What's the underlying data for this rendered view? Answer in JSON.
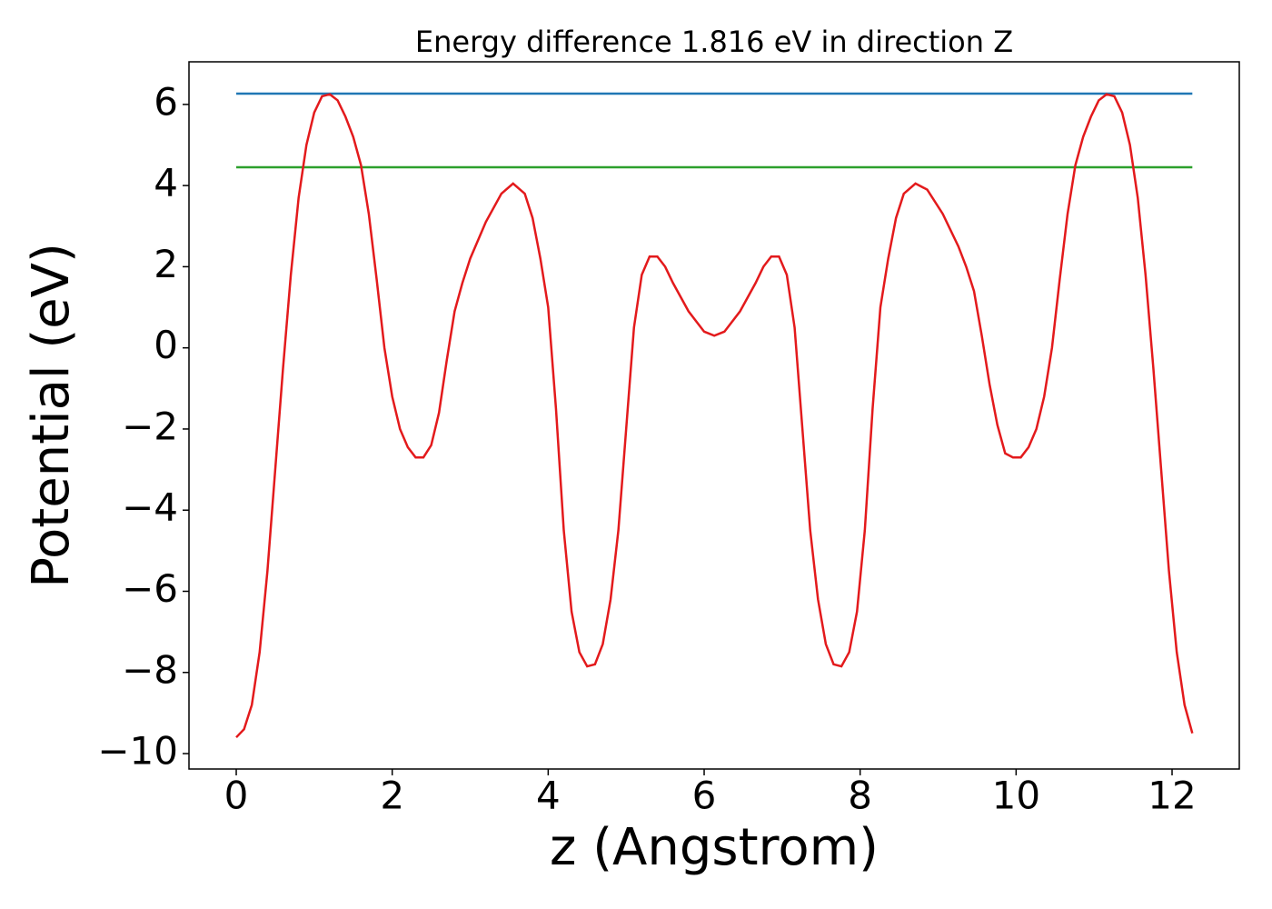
{
  "chart_data": {
    "type": "line",
    "title": "Energy difference 1.816 eV in direction Z",
    "x_label": "z (Angstrom)",
    "y_label": "Potential (eV)",
    "xlim": [
      -0.606,
      12.862
    ],
    "ylim": [
      -10.38,
      7.05
    ],
    "xticks": [
      0,
      2,
      4,
      6,
      8,
      10,
      12
    ],
    "yticks": [
      {
        "value": -10,
        "label": "−10"
      },
      {
        "value": -8,
        "label": "−8"
      },
      {
        "value": -6,
        "label": "−6"
      },
      {
        "value": -4,
        "label": "−4"
      },
      {
        "value": -2,
        "label": "−2"
      },
      0,
      2,
      4,
      6
    ],
    "series": [
      {
        "color": "#1f77b4",
        "x": [
          0,
          12.26
        ],
        "values": [
          6.266,
          6.266
        ]
      },
      {
        "color": "#2ca02c",
        "x": [
          0,
          12.26
        ],
        "values": [
          4.45,
          4.45
        ]
      },
      {
        "color": "#e31a1c",
        "x": [
          0,
          0.1,
          0.2,
          0.3,
          0.4,
          0.5,
          0.6,
          0.7,
          0.8,
          0.9,
          1.0,
          1.1,
          1.2,
          1.3,
          1.4,
          1.5,
          1.6,
          1.7,
          1.8,
          1.9,
          2.0,
          2.1,
          2.2,
          2.3,
          2.4,
          2.5,
          2.6,
          2.7,
          2.8,
          2.9,
          3.0,
          3.2,
          3.4,
          3.55,
          3.7,
          3.8,
          3.9,
          4.0,
          4.1,
          4.2,
          4.3,
          4.4,
          4.5,
          4.6,
          4.7,
          4.8,
          4.9,
          5.0,
          5.1,
          5.2,
          5.3,
          5.4,
          5.5,
          5.6,
          5.8,
          6.0,
          6.13,
          6.26,
          6.46,
          6.66,
          6.76,
          6.86,
          6.96,
          7.06,
          7.16,
          7.26,
          7.36,
          7.46,
          7.56,
          7.66,
          7.76,
          7.86,
          7.96,
          8.06,
          8.16,
          8.26,
          8.36,
          8.46,
          8.56,
          8.71,
          8.86,
          9.06,
          9.26,
          9.36,
          9.46,
          9.56,
          9.66,
          9.76,
          9.86,
          9.96,
          10.06,
          10.16,
          10.26,
          10.36,
          10.46,
          10.56,
          10.66,
          10.76,
          10.86,
          10.96,
          11.06,
          11.16,
          11.26,
          11.36,
          11.46,
          11.56,
          11.66,
          11.76,
          11.86,
          11.96,
          12.06,
          12.16,
          12.26
        ],
        "values": [
          -9.6,
          -9.4,
          -8.8,
          -7.5,
          -5.5,
          -3.0,
          -0.5,
          1.8,
          3.7,
          5.0,
          5.8,
          6.2,
          6.25,
          6.1,
          5.7,
          5.2,
          4.5,
          3.3,
          1.7,
          0.0,
          -1.2,
          -2.0,
          -2.45,
          -2.7,
          -2.7,
          -2.4,
          -1.6,
          -0.3,
          0.9,
          1.6,
          2.2,
          3.1,
          3.8,
          4.05,
          3.8,
          3.2,
          2.2,
          1.0,
          -1.5,
          -4.5,
          -6.5,
          -7.5,
          -7.85,
          -7.8,
          -7.3,
          -6.2,
          -4.5,
          -2.0,
          0.5,
          1.8,
          2.25,
          2.25,
          2.0,
          1.6,
          0.9,
          0.4,
          0.3,
          0.4,
          0.9,
          1.6,
          2.0,
          2.25,
          2.25,
          1.8,
          0.5,
          -2.0,
          -4.5,
          -6.2,
          -7.3,
          -7.8,
          -7.85,
          -7.5,
          -6.5,
          -4.5,
          -1.5,
          1.0,
          2.2,
          3.2,
          3.8,
          4.05,
          3.9,
          3.3,
          2.5,
          2.0,
          1.4,
          0.3,
          -0.9,
          -1.9,
          -2.6,
          -2.7,
          -2.7,
          -2.45,
          -2.0,
          -1.2,
          0.0,
          1.7,
          3.3,
          4.5,
          5.2,
          5.7,
          6.1,
          6.25,
          6.2,
          5.8,
          5.0,
          3.7,
          1.8,
          -0.5,
          -3.0,
          -5.5,
          -7.5,
          -8.8,
          -9.5
        ]
      }
    ]
  }
}
